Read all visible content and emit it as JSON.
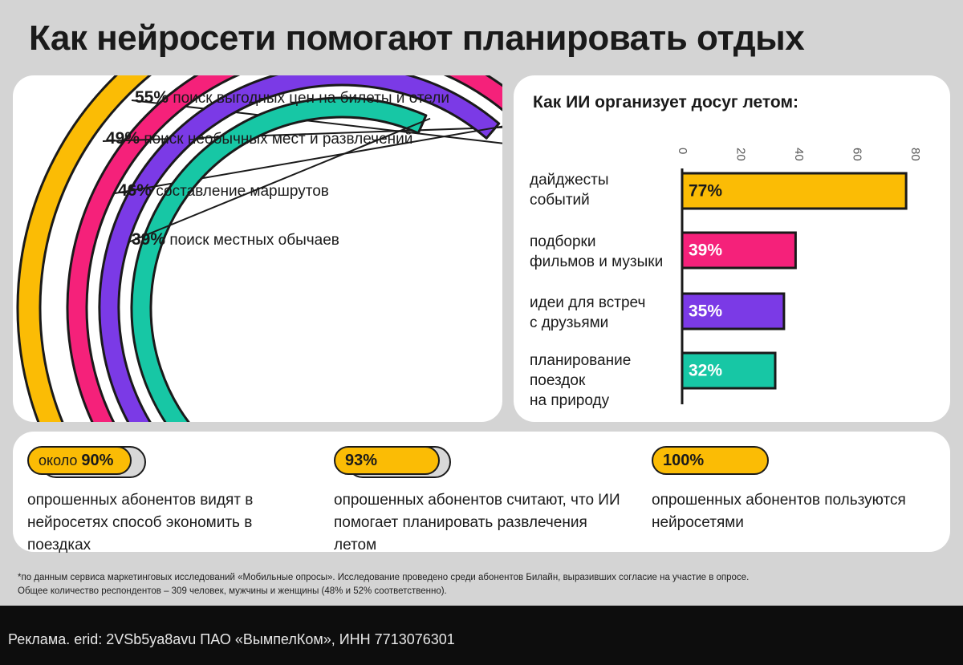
{
  "title": "Как нейросети помогают планировать отдых",
  "colors": {
    "yellow": "#fbbc05",
    "pink": "#f5217a",
    "purple": "#7b3ae6",
    "teal": "#17c7a5",
    "outline": "#1a1a1a"
  },
  "chart_data": [
    {
      "type": "radial-bar",
      "series": [
        {
          "value": 55,
          "label": "55%",
          "text": "поиск выгодных цен на билеты и отели",
          "color": "#fbbc05"
        },
        {
          "value": 49,
          "label": "49%",
          "text": "поиск необычных мест и развлечений",
          "color": "#f5217a"
        },
        {
          "value": 46,
          "label": "46%",
          "text": "составление маршрутов",
          "color": "#7b3ae6"
        },
        {
          "value": 39,
          "label": "39%",
          "text": "поиск местных обычаев",
          "color": "#17c7a5"
        }
      ]
    },
    {
      "type": "bar",
      "orientation": "horizontal",
      "title": "Как ИИ организует досуг летом:",
      "categories": [
        "дайджесты событий",
        "подборки фильмов и музыки",
        "идеи для встреч с друзьями",
        "планирование поездок на природу"
      ],
      "category_lines": [
        [
          "дайджесты",
          "событий"
        ],
        [
          "подборки",
          "фильмов и музыки"
        ],
        [
          "идеи для встреч",
          "с друзьями"
        ],
        [
          "планирование",
          "поездок",
          "на природу"
        ]
      ],
      "values": [
        77,
        39,
        35,
        32
      ],
      "value_labels": [
        "77%",
        "39%",
        "35%",
        "32%"
      ],
      "colors": [
        "#fbbc05",
        "#f5217a",
        "#7b3ae6",
        "#17c7a5"
      ],
      "xlim": [
        0,
        80
      ],
      "ticks": [
        "0",
        "20",
        "40",
        "60",
        "80"
      ],
      "tick_values": [
        0,
        20,
        40,
        60,
        80
      ]
    }
  ],
  "stats": [
    {
      "prefix": "около",
      "value": "90%",
      "text": "опрошенных абонентов видят в нейросетях способ экономить в поездках"
    },
    {
      "prefix": "",
      "value": "93%",
      "text": "опрошенных абонентов считают, что ИИ помогает планировать развлечения летом"
    },
    {
      "prefix": "",
      "value": "100%",
      "text": "опрошенных абонентов пользуются нейросетями"
    }
  ],
  "footnote": {
    "line1": "*по данным сервиса маркетинговых исследований «Мобильные опросы». Исследование проведено среди абонентов Билайн, выразивших согласие на участие в опросе.",
    "line2": "Общее количество респондентов – 309 человек, мужчины и женщины (48% и 52% соответственно)."
  },
  "ad": "Реклама. erid: 2VSb5ya8avu ПАО «ВымпелКом», ИНН 7713076301"
}
